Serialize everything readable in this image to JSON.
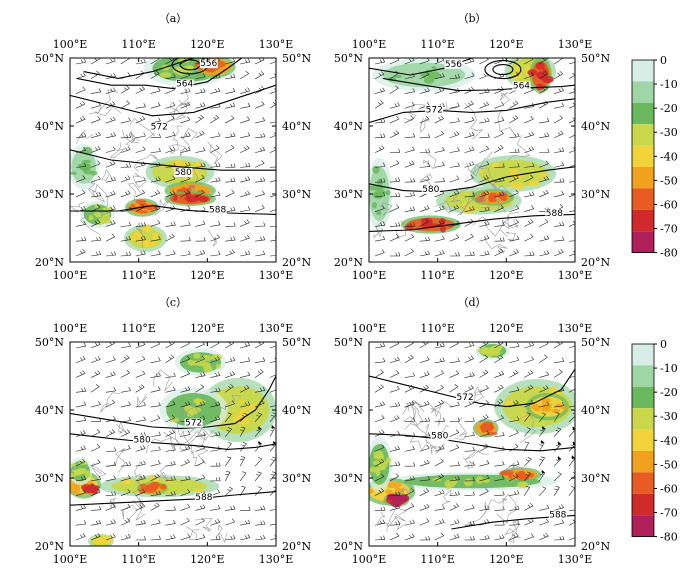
{
  "figure": {
    "panels": [
      {
        "id": "a",
        "label": "（a）",
        "contour_labels": [
          "556",
          "564",
          "572",
          "580",
          "588"
        ],
        "contour_label_lonlat": [
          [
            120.2,
            48.8
          ],
          [
            116.7,
            45.8
          ],
          [
            113.0,
            39.5
          ],
          [
            116.5,
            32.8
          ],
          [
            121.5,
            27.3
          ]
        ],
        "contours": [
          [
            [
              102,
              48
            ],
            [
              107,
              47
            ],
            [
              112,
              48
            ],
            [
              118,
              50
            ]
          ],
          [
            [
              101,
              47
            ],
            [
              106,
              46
            ],
            [
              111,
              46
            ],
            [
              115,
              45.5
            ],
            [
              120,
              46.5
            ],
            [
              123,
              48.5
            ],
            [
              125,
              50
            ]
          ],
          [
            [
              100,
              44.5
            ],
            [
              106,
              43
            ],
            [
              112,
              41.5
            ],
            [
              118,
              42
            ],
            [
              124,
              44
            ],
            [
              130,
              46
            ]
          ],
          [
            [
              100,
              36.5
            ],
            [
              106,
              35
            ],
            [
              111,
              34.5
            ],
            [
              116,
              34
            ],
            [
              122,
              33.5
            ],
            [
              130,
              33.5
            ]
          ],
          [
            [
              100,
              27.5
            ],
            [
              107,
              27.5
            ],
            [
              112,
              28.3
            ],
            [
              117,
              27.6
            ],
            [
              123,
              27.2
            ],
            [
              130,
              27
            ]
          ]
        ],
        "precip_cells": [
          {
            "lon": 117,
            "lat": 48.5,
            "rx": 5,
            "ry": 2.0,
            "value": -20
          },
          {
            "lon": 121,
            "lat": 48.7,
            "rx": 2.5,
            "ry": 1.2,
            "value": -45
          },
          {
            "lon": 116,
            "lat": 33.2,
            "rx": 4,
            "ry": 1.8,
            "value": -25
          },
          {
            "lon": 117.5,
            "lat": 30.5,
            "rx": 3,
            "ry": 1.0,
            "value": -45
          },
          {
            "lon": 117.5,
            "lat": 29.3,
            "rx": 3,
            "ry": 0.8,
            "value": -60
          },
          {
            "lon": 110.5,
            "lat": 28.0,
            "rx": 2,
            "ry": 1.0,
            "value": -45
          },
          {
            "lon": 104,
            "lat": 27.0,
            "rx": 2,
            "ry": 1.5,
            "value": -20
          },
          {
            "lon": 111,
            "lat": 23.5,
            "rx": 2.5,
            "ry": 1.5,
            "value": -25
          },
          {
            "lon": 102,
            "lat": 34.0,
            "rx": 1.8,
            "ry": 2.5,
            "value": -10
          }
        ]
      },
      {
        "id": "b",
        "label": "（b）",
        "contour_labels": [
          "556",
          "564",
          "572",
          "580",
          "588"
        ],
        "contour_label_lonlat": [
          [
            112.3,
            48.7
          ],
          [
            122.2,
            45.5
          ],
          [
            109.5,
            42.0
          ],
          [
            109.0,
            30.3
          ],
          [
            127.0,
            26.8
          ]
        ],
        "contours": [
          [
            [
              100,
              48.5
            ],
            [
              106,
              47.5
            ],
            [
              111,
              48.5
            ],
            [
              115,
              50
            ]
          ],
          [
            [
              102,
              47
            ],
            [
              108,
              46
            ],
            [
              113,
              45.2
            ],
            [
              118,
              45.3
            ],
            [
              123,
              45.6
            ],
            [
              128,
              45.8
            ],
            [
              130,
              46
            ]
          ],
          [
            [
              100,
              40.5
            ],
            [
              105,
              42
            ],
            [
              110,
              42.3
            ],
            [
              115,
              42
            ],
            [
              120,
              42.3
            ],
            [
              126,
              43.5
            ],
            [
              130,
              44
            ]
          ],
          [
            [
              100,
              31.5
            ],
            [
              105,
              30.5
            ],
            [
              110,
              30.3
            ],
            [
              115,
              31
            ],
            [
              120,
              32.5
            ],
            [
              126,
              33.5
            ],
            [
              130,
              34
            ]
          ],
          [
            [
              100,
              24.5
            ],
            [
              106,
              24.7
            ],
            [
              112,
              25.5
            ],
            [
              118,
              26.3
            ],
            [
              124,
              26.8
            ],
            [
              130,
              27
            ]
          ]
        ],
        "precip_cells": [
          {
            "lon": 123.5,
            "lat": 48.0,
            "rx": 3,
            "ry": 2.0,
            "value": -25
          },
          {
            "lon": 125,
            "lat": 47.5,
            "rx": 1.3,
            "ry": 2.0,
            "value": -55
          },
          {
            "lon": 108,
            "lat": 47.5,
            "rx": 6,
            "ry": 1.8,
            "value": -10
          },
          {
            "lon": 121,
            "lat": 33.0,
            "rx": 5,
            "ry": 2.0,
            "value": -30
          },
          {
            "lon": 116,
            "lat": 29.0,
            "rx": 5,
            "ry": 1.5,
            "value": -30
          },
          {
            "lon": 109,
            "lat": 25.5,
            "rx": 3.5,
            "ry": 1.0,
            "value": -55
          },
          {
            "lon": 118,
            "lat": 29.5,
            "rx": 2.5,
            "ry": 0.9,
            "value": -45
          },
          {
            "lon": 101.5,
            "lat": 30.0,
            "rx": 1.5,
            "ry": 4.0,
            "value": -10
          }
        ]
      },
      {
        "id": "c",
        "label": "（c）",
        "contour_labels": [
          "572",
          "580",
          "588"
        ],
        "contour_label_lonlat": [
          [
            118.0,
            37.7
          ],
          [
            110.5,
            35.2
          ],
          [
            119.5,
            26.8
          ]
        ],
        "contours": [
          [
            [
              100,
              39.5
            ],
            [
              106,
              38.5
            ],
            [
              112,
              37.5
            ],
            [
              116,
              37.3
            ],
            [
              120,
              37.5
            ],
            [
              124,
              38
            ],
            [
              127,
              40
            ],
            [
              129,
              43
            ],
            [
              130,
              45
            ]
          ],
          [
            [
              100,
              36.5
            ],
            [
              106,
              35.8
            ],
            [
              112,
              35.2
            ],
            [
              118,
              34.8
            ],
            [
              123,
              34.2
            ],
            [
              127,
              34.5
            ],
            [
              130,
              35
            ]
          ],
          [
            [
              100,
              26
            ],
            [
              106,
              26.3
            ],
            [
              112,
              26.6
            ],
            [
              118,
              26.9
            ],
            [
              124,
              27.5
            ],
            [
              130,
              28
            ]
          ]
        ],
        "precip_cells": [
          {
            "lon": 124.5,
            "lat": 40.0,
            "rx": 4.5,
            "ry": 3.5,
            "value": -30
          },
          {
            "lon": 118,
            "lat": 40.0,
            "rx": 4,
            "ry": 2.5,
            "value": -15
          },
          {
            "lon": 119,
            "lat": 47.0,
            "rx": 3,
            "ry": 1.5,
            "value": -15
          },
          {
            "lon": 113,
            "lat": 28.8,
            "rx": 7,
            "ry": 1.2,
            "value": -30
          },
          {
            "lon": 112,
            "lat": 28.5,
            "rx": 1.8,
            "ry": 0.7,
            "value": -50
          },
          {
            "lon": 102,
            "lat": 29.0,
            "rx": 2,
            "ry": 1.5,
            "value": -35
          },
          {
            "lon": 103,
            "lat": 28.3,
            "rx": 1.0,
            "ry": 0.6,
            "value": -55
          },
          {
            "lon": 101.5,
            "lat": 31.0,
            "rx": 1.4,
            "ry": 1.5,
            "value": -20
          },
          {
            "lon": 104.5,
            "lat": 20.7,
            "rx": 1.5,
            "ry": 0.8,
            "value": -25
          }
        ]
      },
      {
        "id": "d",
        "label": "（d）",
        "contour_labels": [
          "572",
          "580",
          "588"
        ],
        "contour_label_lonlat": [
          [
            114.0,
            41.5
          ],
          [
            110.3,
            35.8
          ],
          [
            127.5,
            24.2
          ]
        ],
        "contours": [
          [
            [
              100,
              45
            ],
            [
              106,
              43.5
            ],
            [
              112,
              42
            ],
            [
              116,
              41
            ],
            [
              120,
              40.5
            ],
            [
              124,
              41
            ],
            [
              128,
              43
            ],
            [
              130,
              46
            ]
          ],
          [
            [
              100,
              36.5
            ],
            [
              105,
              36.3
            ],
            [
              110,
              35.8
            ],
            [
              115,
              35
            ],
            [
              120,
              34.2
            ],
            [
              125,
              34
            ],
            [
              130,
              34.5
            ]
          ],
          [
            [
              112,
              22.5
            ],
            [
              118,
              23.5
            ],
            [
              123,
              24
            ],
            [
              127,
              24.3
            ],
            [
              130,
              24.5
            ]
          ]
        ],
        "precip_cells": [
          {
            "lon": 124.5,
            "lat": 40.5,
            "rx": 5,
            "ry": 3.0,
            "value": -25
          },
          {
            "lon": 126,
            "lat": 40.5,
            "rx": 2.5,
            "ry": 1.5,
            "value": -40
          },
          {
            "lon": 117,
            "lat": 37.3,
            "rx": 1.5,
            "ry": 1.0,
            "value": -45
          },
          {
            "lon": 118,
            "lat": 48.7,
            "rx": 2,
            "ry": 1.0,
            "value": -15
          },
          {
            "lon": 115,
            "lat": 29.5,
            "rx": 10,
            "ry": 1.0,
            "value": -20
          },
          {
            "lon": 122,
            "lat": 30.5,
            "rx": 2.5,
            "ry": 0.8,
            "value": -50
          },
          {
            "lon": 103,
            "lat": 28.0,
            "rx": 3,
            "ry": 1.5,
            "value": -40
          },
          {
            "lon": 104,
            "lat": 26.8,
            "rx": 1.5,
            "ry": 0.8,
            "value": -65
          },
          {
            "lon": 101.5,
            "lat": 32.0,
            "rx": 1.5,
            "ry": 3.0,
            "value": -15
          }
        ]
      }
    ],
    "lon_ticks": [
      "100°E",
      "110°E",
      "120°E",
      "130°E"
    ],
    "lat_ticks": [
      "50°N",
      "40°N",
      "30°N",
      "20°N"
    ],
    "lon_range": [
      100,
      130
    ],
    "lat_range": [
      20,
      50
    ],
    "colorbar": {
      "labels": [
        "0",
        "-10",
        "-20",
        "-30",
        "-40",
        "-50",
        "-60",
        "-70",
        "-80"
      ],
      "colors": [
        "#d7eee6",
        "#9fd6a6",
        "#6bb95e",
        "#c8d84a",
        "#f2d43a",
        "#f0a21e",
        "#e85c22",
        "#d22a2a",
        "#b11f5a"
      ]
    }
  }
}
